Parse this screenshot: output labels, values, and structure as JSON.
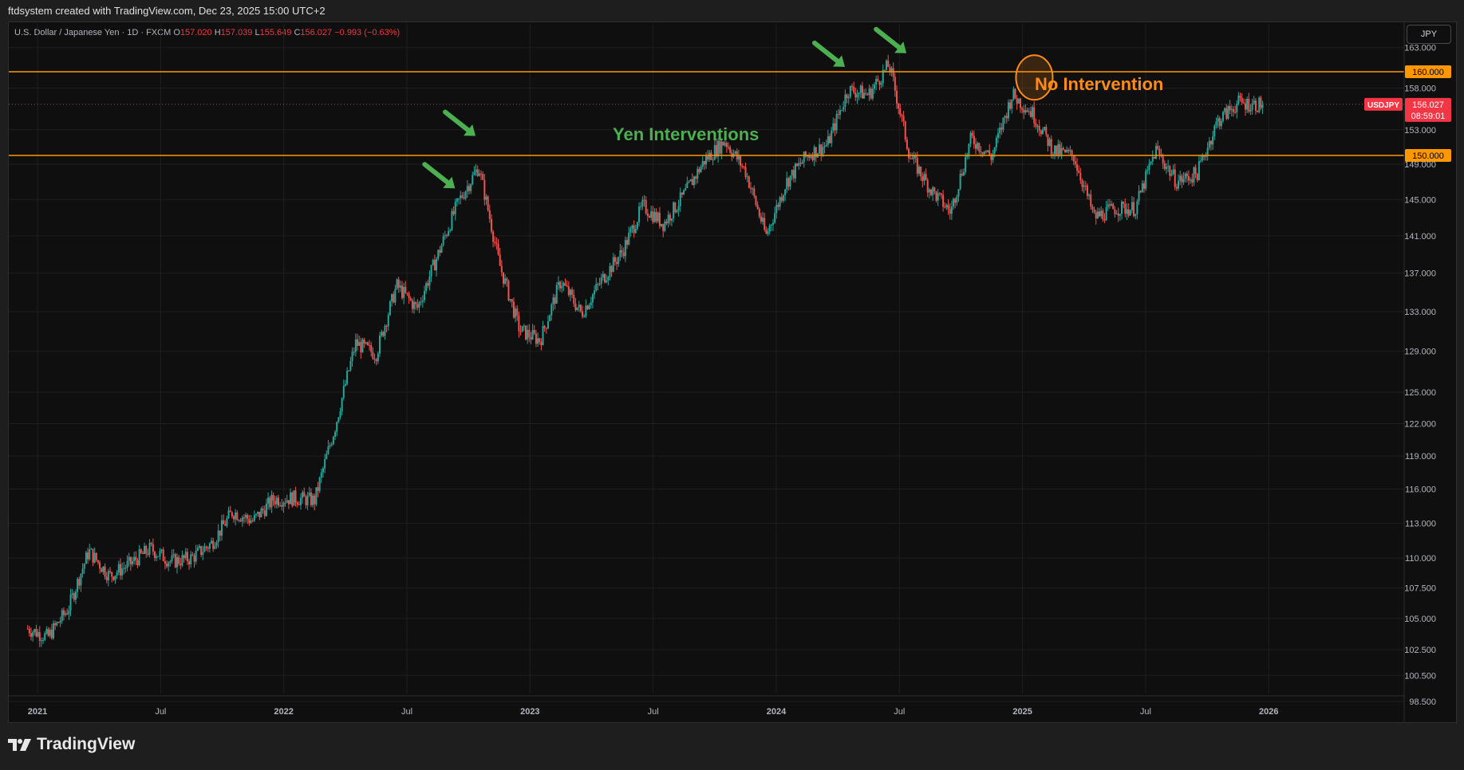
{
  "header": {
    "credit": "ftdsystem created with TradingView.com, Dec 23, 2025 15:00 UTC+2"
  },
  "legend": {
    "symbol_desc": "U.S. Dollar / Japanese Yen · 1D · FXCM",
    "open_label": "O",
    "open": "157.020",
    "high_label": "H",
    "high": "157.039",
    "low_label": "L",
    "low": "155.649",
    "close_label": "C",
    "close": "156.027",
    "change": "−0.993 (−0.63%)"
  },
  "currency_button": "JPY",
  "brand": {
    "name": "TradingView",
    "icon": "tradingview-logo-icon"
  },
  "colors": {
    "up": "#26a69a",
    "down": "#ef5350",
    "level_line": "#ff9800",
    "annotation_green": "#4caf50",
    "annotation_orange": "#ff8c1a",
    "price_badge": "#f23645"
  },
  "chart_data": {
    "type": "line",
    "symbol": "USDJPY",
    "x_ticks": [
      "2021",
      "Jul",
      "2022",
      "Jul",
      "2023",
      "Jul",
      "2024",
      "Jul",
      "2025",
      "Jul",
      "2026"
    ],
    "y_ticks": [
      "163.000",
      "158.000",
      "153.000",
      "149.000",
      "145.000",
      "141.000",
      "137.000",
      "133.000",
      "129.000",
      "125.000",
      "122.000",
      "119.000",
      "116.000",
      "113.000",
      "110.000",
      "107.500",
      "105.000",
      "102.500",
      "100.500",
      "98.500"
    ],
    "ylim": [
      97,
      166
    ],
    "log_scale": true,
    "grid": true,
    "series": [
      {
        "values": [
          {
            "x": "2020-12",
            "y": 104.2
          },
          {
            "x": "2021-01",
            "y": 103.5
          },
          {
            "x": "2021-02",
            "y": 105.8
          },
          {
            "x": "2021-03",
            "y": 110.6
          },
          {
            "x": "2021-04",
            "y": 108.5
          },
          {
            "x": "2021-05",
            "y": 109.5
          },
          {
            "x": "2021-06",
            "y": 110.8
          },
          {
            "x": "2021-07",
            "y": 109.7
          },
          {
            "x": "2021-08",
            "y": 110.0
          },
          {
            "x": "2021-09",
            "y": 111.3
          },
          {
            "x": "2021-10",
            "y": 114.0
          },
          {
            "x": "2021-11",
            "y": 113.2
          },
          {
            "x": "2021-12",
            "y": 115.1
          },
          {
            "x": "2022-01",
            "y": 115.2
          },
          {
            "x": "2022-02",
            "y": 115.0
          },
          {
            "x": "2022-03",
            "y": 121.7
          },
          {
            "x": "2022-04",
            "y": 129.8
          },
          {
            "x": "2022-05",
            "y": 128.7
          },
          {
            "x": "2022-06",
            "y": 135.7
          },
          {
            "x": "2022-07",
            "y": 133.3
          },
          {
            "x": "2022-08",
            "y": 138.9
          },
          {
            "x": "2022-09",
            "y": 144.7
          },
          {
            "x": "2022-10",
            "y": 148.7
          },
          {
            "x": "2022-11",
            "y": 138.0
          },
          {
            "x": "2022-12",
            "y": 131.1
          },
          {
            "x": "2023-01",
            "y": 130.1
          },
          {
            "x": "2023-02",
            "y": 136.2
          },
          {
            "x": "2023-03",
            "y": 132.8
          },
          {
            "x": "2023-04",
            "y": 136.3
          },
          {
            "x": "2023-05",
            "y": 139.3
          },
          {
            "x": "2023-06",
            "y": 144.3
          },
          {
            "x": "2023-07",
            "y": 142.3
          },
          {
            "x": "2023-08",
            "y": 145.5
          },
          {
            "x": "2023-09",
            "y": 149.4
          },
          {
            "x": "2023-10",
            "y": 151.7
          },
          {
            "x": "2023-11",
            "y": 148.2
          },
          {
            "x": "2023-12",
            "y": 141.0
          },
          {
            "x": "2024-01",
            "y": 147.0
          },
          {
            "x": "2024-02",
            "y": 150.0
          },
          {
            "x": "2024-03",
            "y": 151.3
          },
          {
            "x": "2024-04",
            "y": 157.8
          },
          {
            "x": "2024-05",
            "y": 157.2
          },
          {
            "x": "2024-06",
            "y": 160.9
          },
          {
            "x": "2024-07",
            "y": 150.0
          },
          {
            "x": "2024-08",
            "y": 146.2
          },
          {
            "x": "2024-09",
            "y": 143.6
          },
          {
            "x": "2024-10",
            "y": 152.0
          },
          {
            "x": "2024-11",
            "y": 149.8
          },
          {
            "x": "2024-12",
            "y": 157.2
          },
          {
            "x": "2025-01",
            "y": 154.9
          },
          {
            "x": "2025-02",
            "y": 150.6
          },
          {
            "x": "2025-03",
            "y": 149.9
          },
          {
            "x": "2025-04",
            "y": 143.0
          },
          {
            "x": "2025-05",
            "y": 144.0
          },
          {
            "x": "2025-06",
            "y": 144.0
          },
          {
            "x": "2025-07",
            "y": 150.7
          },
          {
            "x": "2025-08",
            "y": 147.0
          },
          {
            "x": "2025-09",
            "y": 147.9
          },
          {
            "x": "2025-10",
            "y": 154.0
          },
          {
            "x": "2025-11",
            "y": 156.2
          },
          {
            "x": "2025-12",
            "y": 156.0
          }
        ]
      }
    ],
    "horizontal_levels": [
      {
        "value": 160.0,
        "label": "160.000"
      },
      {
        "value": 150.0,
        "label": "150.000"
      }
    ],
    "last_price": {
      "symbol": "USDJPY",
      "value": 156.027,
      "label": "156.027",
      "countdown": "08:59:01"
    },
    "annotations": [
      {
        "text": "Yen Interventions",
        "color": "#4caf50"
      },
      {
        "text": "No Intervention",
        "color": "#ff8c1a"
      }
    ],
    "intervention_arrows": [
      {
        "x": "2022-09",
        "y": 145.9
      },
      {
        "x": "2022-10",
        "y": 151.9
      },
      {
        "x": "2024-04",
        "y": 160.2
      },
      {
        "x": "2024-07",
        "y": 161.9
      }
    ],
    "no_intervention_circle": {
      "x": "2025-01",
      "y": 158.9
    }
  }
}
